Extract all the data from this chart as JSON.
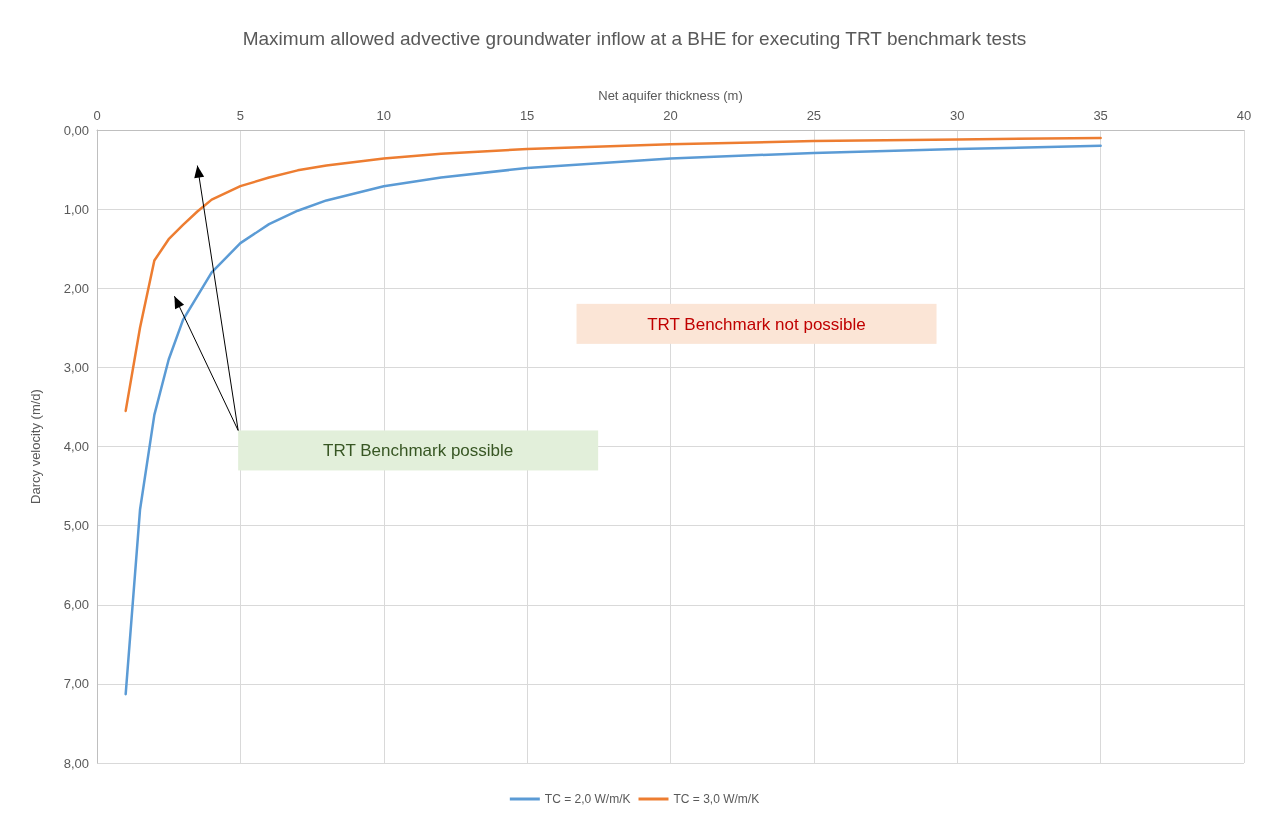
{
  "chart_data": {
    "type": "line",
    "title": "Maximum allowed advective groundwater inflow at a BHE for executing TRT benchmark tests",
    "xlabel": "Net aquifer thickness (m)",
    "ylabel": "Darcy velocity (m/d)",
    "xlim": [
      0,
      40
    ],
    "xticks": [
      0,
      5,
      10,
      15,
      20,
      25,
      30,
      35,
      40
    ],
    "ylim": [
      8,
      0
    ],
    "yticks": [
      {
        "value": 0,
        "label": "0,00"
      },
      {
        "value": 1,
        "label": "1,00"
      },
      {
        "value": 2,
        "label": "2,00"
      },
      {
        "value": 3,
        "label": "3,00"
      },
      {
        "value": 4,
        "label": "4,00"
      },
      {
        "value": 5,
        "label": "5,00"
      },
      {
        "value": 6,
        "label": "6,00"
      },
      {
        "value": 7,
        "label": "7,00"
      },
      {
        "value": 8,
        "label": "8,00"
      }
    ],
    "grid": true,
    "legend": "bottom",
    "marker": "none",
    "line_style": "solid",
    "series": [
      {
        "name": "TC = 2,0 W/m/K",
        "color": "#5b9bd5",
        "x": [
          1,
          1.5,
          2,
          2.5,
          3,
          4,
          5,
          6,
          7,
          8,
          10,
          12,
          15,
          20,
          25,
          30,
          35
        ],
        "values": [
          7.13,
          4.8,
          3.6,
          2.9,
          2.4,
          1.8,
          1.43,
          1.19,
          1.02,
          0.89,
          0.71,
          0.6,
          0.48,
          0.36,
          0.29,
          0.24,
          0.2
        ]
      },
      {
        "name": "TC = 3,0 W/m/K",
        "color": "#ed7d31",
        "x": [
          1,
          1.5,
          2,
          2.5,
          3,
          3.5,
          4,
          5,
          6,
          7,
          8,
          10,
          12,
          15,
          20,
          25,
          30,
          35
        ],
        "values": [
          3.55,
          2.5,
          1.65,
          1.38,
          1.2,
          1.03,
          0.88,
          0.71,
          0.6,
          0.51,
          0.45,
          0.36,
          0.3,
          0.24,
          0.18,
          0.14,
          0.12,
          0.1
        ]
      }
    ],
    "annotations": [
      "TRT Benchmark possible",
      "TRT Benchmark not possible"
    ]
  }
}
